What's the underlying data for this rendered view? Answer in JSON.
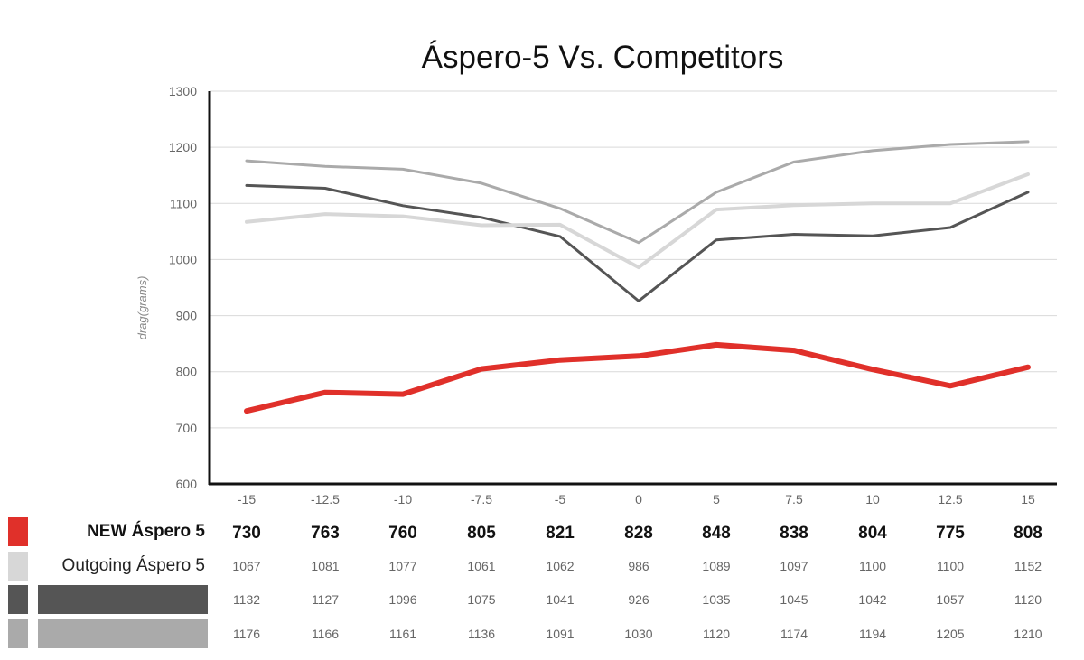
{
  "chart_data": {
    "type": "line",
    "title": "Áspero-5 Vs. Competitors",
    "ylabel": "drag(grams)",
    "xlabel": "",
    "x": [
      "-15",
      "-12.5",
      "-10",
      "-7.5",
      "-5",
      "0",
      "5",
      "7.5",
      "10",
      "12.5",
      "15"
    ],
    "ylim": [
      600,
      1300
    ],
    "yticks": [
      "600",
      "700",
      "800",
      "900",
      "1000",
      "1100",
      "1200",
      "1300"
    ],
    "grid": true,
    "legend": "table-below",
    "series": [
      {
        "name": "NEW Áspero 5",
        "color": "#e0302a",
        "values": [
          730,
          763,
          760,
          805,
          821,
          828,
          848,
          838,
          804,
          775,
          808
        ]
      },
      {
        "name": "Outgoing Áspero 5",
        "color": "#d7d7d7",
        "values": [
          1067,
          1081,
          1077,
          1061,
          1062,
          986,
          1089,
          1097,
          1100,
          1100,
          1152
        ]
      },
      {
        "name": "",
        "color": "#555555",
        "values": [
          1132,
          1127,
          1096,
          1075,
          1041,
          926,
          1035,
          1045,
          1042,
          1057,
          1120
        ]
      },
      {
        "name": "",
        "color": "#aaaaaa",
        "values": [
          1176,
          1166,
          1161,
          1136,
          1091,
          1030,
          1120,
          1174,
          1194,
          1205,
          1210
        ]
      }
    ]
  }
}
